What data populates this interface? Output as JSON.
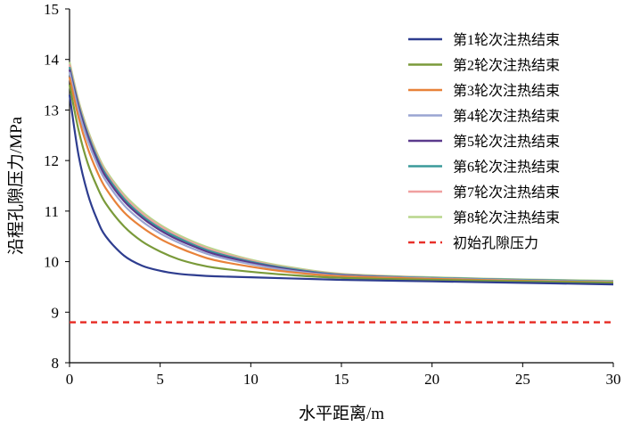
{
  "chart_data": {
    "type": "line",
    "title": "",
    "xlabel": "水平距离/m",
    "ylabel": "沿程孔隙压力/MPa",
    "xlim": [
      0,
      30
    ],
    "ylim": [
      8,
      15
    ],
    "xticks": [
      "0",
      "5",
      "10",
      "15",
      "20",
      "25",
      "30"
    ],
    "yticks": [
      "8",
      "9",
      "10",
      "11",
      "12",
      "13",
      "14",
      "15"
    ],
    "legend_position": "top-right",
    "x": [
      0,
      0.5,
      1,
      1.5,
      2,
      3,
      4,
      5,
      6,
      7,
      8,
      10,
      12,
      15,
      20,
      25,
      30
    ],
    "series": [
      {
        "name": "第1轮次注热结束",
        "color": "#2e3d8f",
        "dash": "",
        "values": [
          13.3,
          12.1,
          11.35,
          10.85,
          10.5,
          10.12,
          9.92,
          9.82,
          9.76,
          9.73,
          9.71,
          9.69,
          9.67,
          9.64,
          9.61,
          9.58,
          9.55
        ]
      },
      {
        "name": "第2轮次注热结束",
        "color": "#7a9a3a",
        "dash": "",
        "values": [
          13.5,
          12.6,
          11.95,
          11.5,
          11.15,
          10.7,
          10.4,
          10.2,
          10.05,
          9.95,
          9.88,
          9.8,
          9.74,
          9.68,
          9.64,
          9.61,
          9.58
        ]
      },
      {
        "name": "第3轮次注热结束",
        "color": "#e8823a",
        "dash": "",
        "values": [
          13.65,
          12.85,
          12.25,
          11.8,
          11.45,
          10.98,
          10.68,
          10.45,
          10.28,
          10.14,
          10.03,
          9.9,
          9.8,
          9.71,
          9.66,
          9.62,
          9.59
        ]
      },
      {
        "name": "第4轮次注热结束",
        "color": "#9aa5d2",
        "dash": "",
        "values": [
          13.75,
          12.98,
          12.4,
          11.95,
          11.6,
          11.12,
          10.8,
          10.56,
          10.38,
          10.23,
          10.11,
          9.95,
          9.83,
          9.72,
          9.67,
          9.63,
          9.6
        ]
      },
      {
        "name": "第5轮次注热结束",
        "color": "#5b3a8c",
        "dash": "",
        "values": [
          13.8,
          13.05,
          12.48,
          12.03,
          11.68,
          11.2,
          10.87,
          10.62,
          10.43,
          10.28,
          10.15,
          9.98,
          9.85,
          9.73,
          9.67,
          9.63,
          9.6
        ]
      },
      {
        "name": "第6轮次注热结束",
        "color": "#3a9a9a",
        "dash": "",
        "values": [
          13.85,
          13.1,
          12.53,
          12.08,
          11.73,
          11.25,
          10.91,
          10.66,
          10.47,
          10.31,
          10.18,
          10.0,
          9.87,
          9.74,
          9.68,
          9.64,
          9.61
        ]
      },
      {
        "name": "第7轮次注热结束",
        "color": "#f0a0a0",
        "dash": "",
        "values": [
          13.9,
          13.14,
          12.57,
          12.12,
          11.77,
          11.29,
          10.95,
          10.7,
          10.5,
          10.34,
          10.21,
          10.02,
          9.88,
          9.75,
          9.68,
          9.64,
          9.61
        ]
      },
      {
        "name": "第8轮次注热结束",
        "color": "#b8d68c",
        "dash": "",
        "values": [
          13.95,
          13.18,
          12.61,
          12.16,
          11.81,
          11.33,
          10.99,
          10.73,
          10.53,
          10.37,
          10.24,
          10.04,
          9.9,
          9.76,
          9.69,
          9.65,
          9.62
        ]
      },
      {
        "name": "初始孔隙压力",
        "color": "#e8302a",
        "dash": "dashed",
        "values": [
          8.8,
          8.8,
          8.8,
          8.8,
          8.8,
          8.8,
          8.8,
          8.8,
          8.8,
          8.8,
          8.8,
          8.8,
          8.8,
          8.8,
          8.8,
          8.8,
          8.8
        ]
      }
    ]
  }
}
